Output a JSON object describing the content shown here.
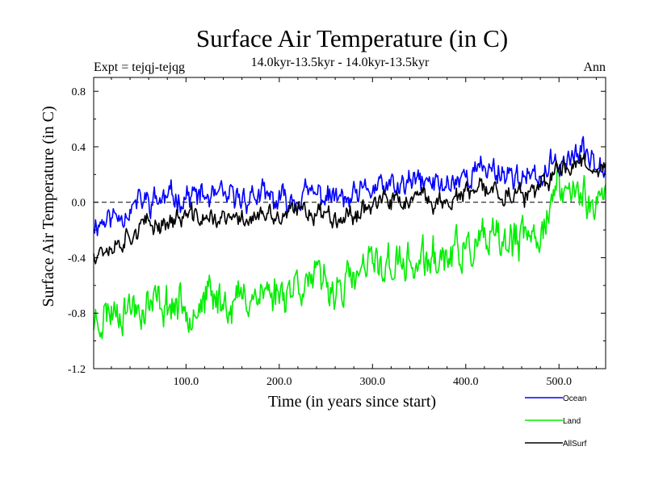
{
  "chart_data": {
    "type": "line",
    "title": "Surface Air Temperature (in C)",
    "subtitle_left": "Expt = tejqj-tejqg",
    "subtitle_center": "14.0kyr-13.5kyr - 14.0kyr-13.5kyr",
    "subtitle_right": "Ann",
    "xlabel": "Time (in years since start)",
    "ylabel": "Surface Air Temperature (in C)",
    "xlim": [
      1,
      550
    ],
    "ylim": [
      -1.2,
      0.9
    ],
    "x_ticks": [
      100,
      200,
      300,
      400,
      500
    ],
    "x_tick_labels": [
      "100.0",
      "200.0",
      "300.0",
      "400.0",
      "500.0"
    ],
    "y_ticks": [
      -1.2,
      -0.8,
      -0.4,
      0.0,
      0.4,
      0.8
    ],
    "y_tick_labels": [
      "-1.2",
      "-0.8",
      "-0.4",
      "0.0",
      "0.4",
      "0.8"
    ],
    "zero_line": true,
    "legend_position": "bottom-right",
    "series": [
      {
        "name": "Ocean",
        "color": "#0000ff",
        "x": [
          1,
          25,
          50,
          75,
          100,
          125,
          150,
          175,
          200,
          225,
          250,
          275,
          300,
          325,
          350,
          375,
          400,
          425,
          450,
          475,
          500,
          525,
          550
        ],
        "values": [
          -0.15,
          -0.1,
          0.0,
          0.02,
          0.05,
          0.03,
          0.02,
          0.05,
          0.0,
          0.05,
          0.05,
          0.0,
          0.1,
          0.1,
          0.15,
          0.12,
          0.2,
          0.25,
          0.2,
          0.15,
          0.3,
          0.35,
          0.3
        ],
        "noise": 0.13,
        "seed": 11
      },
      {
        "name": "Land",
        "color": "#00ee00",
        "x": [
          1,
          25,
          50,
          75,
          100,
          125,
          150,
          175,
          200,
          225,
          250,
          275,
          300,
          325,
          350,
          375,
          400,
          425,
          450,
          475,
          500,
          525,
          550
        ],
        "values": [
          -0.85,
          -0.75,
          -0.75,
          -0.72,
          -0.75,
          -0.7,
          -0.72,
          -0.65,
          -0.65,
          -0.55,
          -0.6,
          -0.6,
          -0.45,
          -0.45,
          -0.45,
          -0.4,
          -0.35,
          -0.3,
          -0.3,
          -0.25,
          0.1,
          0.05,
          0.0
        ],
        "noise": 0.2,
        "seed": 23
      },
      {
        "name": "AllSurf",
        "color": "#000000",
        "x": [
          1,
          25,
          50,
          75,
          100,
          125,
          150,
          175,
          200,
          225,
          250,
          275,
          300,
          325,
          350,
          375,
          400,
          425,
          450,
          475,
          500,
          525,
          550
        ],
        "values": [
          -0.35,
          -0.3,
          -0.18,
          -0.15,
          -0.1,
          -0.12,
          -0.13,
          -0.1,
          -0.12,
          -0.05,
          -0.08,
          -0.1,
          0.0,
          0.0,
          0.02,
          0.0,
          0.05,
          0.1,
          0.05,
          0.05,
          0.25,
          0.3,
          0.25
        ],
        "noise": 0.1,
        "seed": 37
      }
    ]
  }
}
